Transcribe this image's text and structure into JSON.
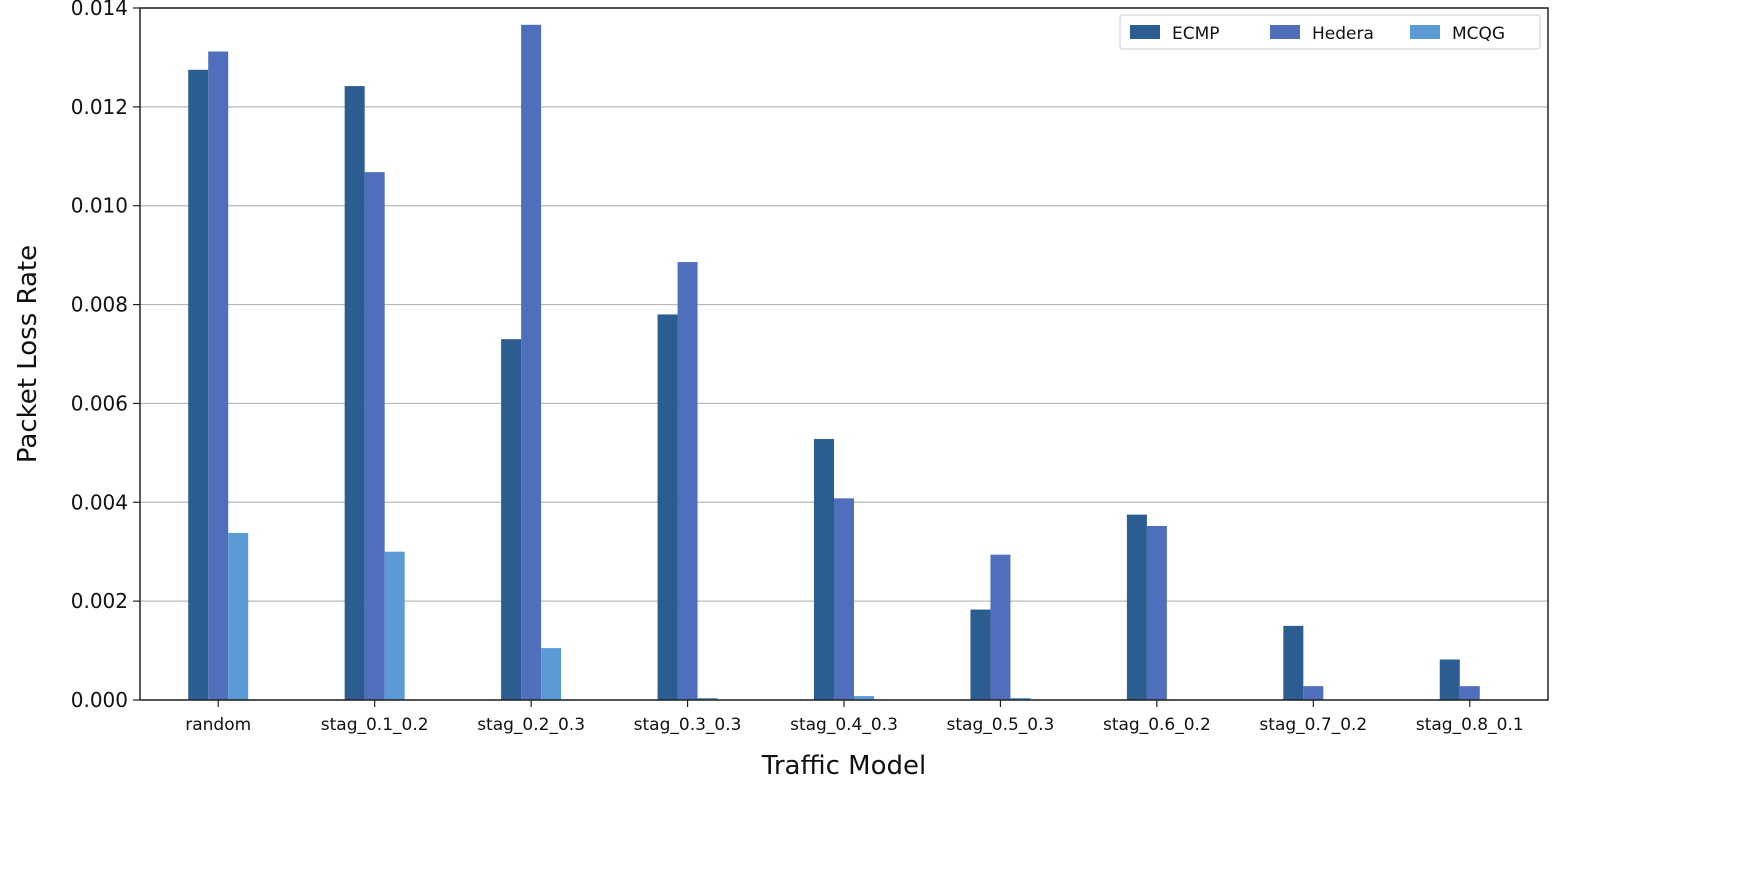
{
  "chart_data": {
    "type": "bar",
    "title": "",
    "xlabel": "Traffic Model",
    "ylabel": "Packet Loss Rate",
    "ylim": [
      0,
      0.014
    ],
    "yticks": [
      "0.000",
      "0.002",
      "0.004",
      "0.006",
      "0.008",
      "0.010",
      "0.012",
      "0.014"
    ],
    "grid": "horizontal",
    "legend_position": "top-right",
    "categories": [
      "random",
      "stag_0.1_0.2",
      "stag_0.2_0.3",
      "stag_0.3_0.3",
      "stag_0.4_0.3",
      "stag_0.5_0.3",
      "stag_0.6_0.2",
      "stag_0.7_0.2",
      "stag_0.8_0.1"
    ],
    "series": [
      {
        "name": "ECMP",
        "color": "#2b5d91",
        "values": [
          0.01275,
          0.01242,
          0.0073,
          0.0078,
          0.00528,
          0.00183,
          0.00375,
          0.0015,
          0.00082
        ]
      },
      {
        "name": "Hedera",
        "color": "#4f6fbd",
        "values": [
          0.01312,
          0.01068,
          0.01366,
          0.00886,
          0.00408,
          0.00294,
          0.00352,
          0.00028,
          0.00028
        ]
      },
      {
        "name": "MCQG",
        "color": "#5b9bd5",
        "values": [
          0.00338,
          0.003,
          0.00105,
          4e-05,
          8e-05,
          4e-05,
          0.0,
          0.0,
          0.0
        ]
      }
    ]
  }
}
